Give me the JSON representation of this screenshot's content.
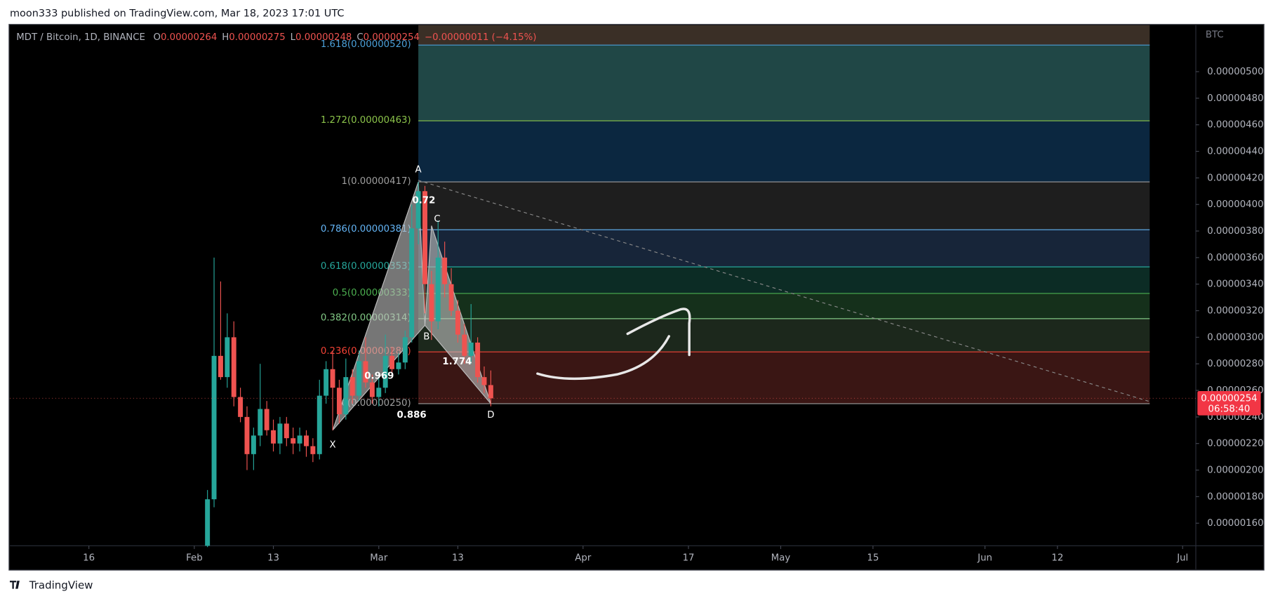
{
  "header": {
    "text": "moon333 published on TradingView.com, Mar 18, 2023 17:01 UTC"
  },
  "legend": {
    "symbol": "MDT / Bitcoin, 1D, BINANCE",
    "items": [
      {
        "key": "O",
        "value": "0.00000264"
      },
      {
        "key": "H",
        "value": "0.00000275"
      },
      {
        "key": "L",
        "value": "0.00000248"
      },
      {
        "key": "C",
        "value": "0.00000254"
      }
    ],
    "change": "−0.00000011 (−4.15%)"
  },
  "footer": {
    "brand": "TradingView"
  },
  "chart_data": {
    "type": "candlestick",
    "currency": "BTC",
    "up_color": "#26a69a",
    "down_color": "#ef5350",
    "x": [
      "02-03",
      "02-04",
      "02-05",
      "02-06",
      "02-07",
      "02-08",
      "02-09",
      "02-10",
      "02-11",
      "02-12",
      "02-13",
      "02-14",
      "02-15",
      "02-16",
      "02-17",
      "02-18",
      "02-19",
      "02-20",
      "02-21",
      "02-22",
      "02-23",
      "02-24",
      "02-25",
      "02-26",
      "02-27",
      "02-28",
      "03-01",
      "03-02",
      "03-03",
      "03-04",
      "03-05",
      "03-06",
      "03-07",
      "03-08",
      "03-09",
      "03-10",
      "03-11",
      "03-12",
      "03-13",
      "03-14",
      "03-15",
      "03-16",
      "03-17",
      "03-18"
    ],
    "open": [
      1.43e-06,
      1.78e-06,
      2.86e-06,
      2.7e-06,
      3e-06,
      2.55e-06,
      2.4e-06,
      2.12e-06,
      2.26e-06,
      2.46e-06,
      2.3e-06,
      2.2e-06,
      2.35e-06,
      2.24e-06,
      2.2e-06,
      2.26e-06,
      2.18e-06,
      2.12e-06,
      2.56e-06,
      2.76e-06,
      2.62e-06,
      2.42e-06,
      2.7e-06,
      2.56e-06,
      2.82e-06,
      2.66e-06,
      2.55e-06,
      2.62e-06,
      2.86e-06,
      2.76e-06,
      2.81e-06,
      3e-06,
      3.82e-06,
      4.1e-06,
      3.4e-06,
      3.12e-06,
      3.6e-06,
      3.4e-06,
      3.2e-06,
      3.02e-06,
      2.86e-06,
      2.96e-06,
      2.7e-06,
      2.64e-06
    ],
    "high": [
      1.85e-06,
      3.6e-06,
      3.42e-06,
      3.18e-06,
      3.12e-06,
      2.62e-06,
      2.48e-06,
      2.32e-06,
      2.8e-06,
      2.52e-06,
      2.38e-06,
      2.4e-06,
      2.4e-06,
      2.32e-06,
      2.32e-06,
      2.3e-06,
      2.24e-06,
      2.68e-06,
      2.82e-06,
      2.9e-06,
      2.68e-06,
      2.84e-06,
      2.76e-06,
      2.9e-06,
      3e-06,
      2.72e-06,
      2.7e-06,
      3.02e-06,
      2.92e-06,
      2.88e-06,
      3.05e-06,
      4e-06,
      4.17e-06,
      4.14e-06,
      3.5e-06,
      3.88e-06,
      3.72e-06,
      3.52e-06,
      3.28e-06,
      3.1e-06,
      3.25e-06,
      3e-06,
      2.78e-06,
      2.75e-06
    ],
    "low": [
      1.42e-06,
      1.72e-06,
      2.68e-06,
      2.62e-06,
      2.48e-06,
      2.36e-06,
      2e-06,
      2e-06,
      2.18e-06,
      2.26e-06,
      2.14e-06,
      2.12e-06,
      2.18e-06,
      2.12e-06,
      2.14e-06,
      2.1e-06,
      2.06e-06,
      2.08e-06,
      2.5e-06,
      2.3e-06,
      2.35e-06,
      2.38e-06,
      2.5e-06,
      2.52e-06,
      2.62e-06,
      2.5e-06,
      2.48e-06,
      2.58e-06,
      2.7e-06,
      2.72e-06,
      2.76e-06,
      2.96e-06,
      3.7e-06,
      3.18e-06,
      2.98e-06,
      3.06e-06,
      3.3e-06,
      3.16e-06,
      2.96e-06,
      2.8e-06,
      2.8e-06,
      2.66e-06,
      2.58e-06,
      2.48e-06
    ],
    "close": [
      1.78e-06,
      2.86e-06,
      2.7e-06,
      3e-06,
      2.55e-06,
      2.4e-06,
      2.12e-06,
      2.26e-06,
      2.46e-06,
      2.3e-06,
      2.2e-06,
      2.35e-06,
      2.24e-06,
      2.2e-06,
      2.26e-06,
      2.18e-06,
      2.12e-06,
      2.56e-06,
      2.76e-06,
      2.62e-06,
      2.42e-06,
      2.7e-06,
      2.56e-06,
      2.82e-06,
      2.66e-06,
      2.55e-06,
      2.62e-06,
      2.86e-06,
      2.76e-06,
      2.81e-06,
      3e-06,
      3.82e-06,
      4.1e-06,
      3.4e-06,
      3.12e-06,
      3.6e-06,
      3.4e-06,
      3.2e-06,
      3.02e-06,
      2.86e-06,
      2.96e-06,
      2.7e-06,
      2.64e-06,
      2.54e-06
    ],
    "xlim": [
      "01-04",
      "07-03"
    ],
    "xticks": [
      {
        "value": "01-16",
        "label": "16"
      },
      {
        "value": "02-01",
        "label": "Feb"
      },
      {
        "value": "02-13",
        "label": "13"
      },
      {
        "value": "03-01",
        "label": "Mar"
      },
      {
        "value": "03-13",
        "label": "13"
      },
      {
        "value": "04-01",
        "label": "Apr"
      },
      {
        "value": "04-17",
        "label": "17"
      },
      {
        "value": "05-01",
        "label": "May"
      },
      {
        "value": "05-15",
        "label": "15"
      },
      {
        "value": "06-01",
        "label": "Jun"
      },
      {
        "value": "06-12",
        "label": "12"
      },
      {
        "value": "07-01",
        "label": "Jul"
      }
    ],
    "ylim": [
      1.43e-06,
      5.35e-06
    ],
    "yticks": [
      {
        "value": 1.6e-06,
        "label": "0.00000160"
      },
      {
        "value": 1.8e-06,
        "label": "0.00000180"
      },
      {
        "value": 2e-06,
        "label": "0.00000200"
      },
      {
        "value": 2.2e-06,
        "label": "0.00000220"
      },
      {
        "value": 2.4e-06,
        "label": "0.00000240"
      },
      {
        "value": 2.6e-06,
        "label": "0.00000260"
      },
      {
        "value": 2.8e-06,
        "label": "0.00000280"
      },
      {
        "value": 3e-06,
        "label": "0.00000300"
      },
      {
        "value": 3.2e-06,
        "label": "0.00000320"
      },
      {
        "value": 3.4e-06,
        "label": "0.00000340"
      },
      {
        "value": 3.6e-06,
        "label": "0.00000360"
      },
      {
        "value": 3.8e-06,
        "label": "0.00000380"
      },
      {
        "value": 4e-06,
        "label": "0.00000400"
      },
      {
        "value": 4.2e-06,
        "label": "0.00000420"
      },
      {
        "value": 4.4e-06,
        "label": "0.00000440"
      },
      {
        "value": 4.6e-06,
        "label": "0.00000460"
      },
      {
        "value": 4.8e-06,
        "label": "0.00000480"
      },
      {
        "value": 5e-06,
        "label": "0.00000500"
      }
    ],
    "last_price": {
      "value": 2.54e-06,
      "label": "0.00000254"
    },
    "countdown": "06:58:40",
    "fib": {
      "start": "03-07",
      "end": "06-26",
      "levels": [
        {
          "label": "1.618(0.00000520)",
          "value": 5.2e-06,
          "color": "#4a9fd8",
          "zone": "#204746"
        },
        {
          "label": "1.272(0.00000463)",
          "value": 4.63e-06,
          "color": "#8bc34a",
          "zone": "#0b2740"
        },
        {
          "label": "1(0.00000417)",
          "value": 4.17e-06,
          "color": "#9e9e9e",
          "zone": "#1e1e1e"
        },
        {
          "label": "0.786(0.00000381)",
          "value": 3.81e-06,
          "color": "#64b5f6",
          "zone": "#172539"
        },
        {
          "label": "0.618(0.00000353)",
          "value": 3.53e-06,
          "color": "#26a69a",
          "zone": "#0c2c25"
        },
        {
          "label": "0.5(0.00000333)",
          "value": 3.33e-06,
          "color": "#4caf50",
          "zone": "#15301b"
        },
        {
          "label": "0.382(0.00000314)",
          "value": 3.14e-06,
          "color": "#81c784",
          "zone": "#1c281c"
        },
        {
          "label": "0.236(0.00000289)",
          "value": 2.89e-06,
          "color": "#f44336",
          "zone": "#3a1614"
        },
        {
          "label": "0(0.00000250)",
          "value": 2.5e-06,
          "color": "#9e9e9e"
        }
      ]
    },
    "pattern": {
      "points": [
        {
          "label": "X",
          "x": "02-22",
          "y": 2.3e-06
        },
        {
          "label": "A",
          "x": "03-07",
          "y": 4.17e-06
        },
        {
          "label": "B",
          "x": "03-08",
          "y": 3.09e-06
        },
        {
          "label": "C",
          "x": "03-09",
          "y": 3.84e-06
        },
        {
          "label": "D",
          "x": "03-18",
          "y": 2.5e-06
        }
      ],
      "ratios": [
        0.72,
        0.969,
        1.774,
        0.886
      ]
    }
  }
}
